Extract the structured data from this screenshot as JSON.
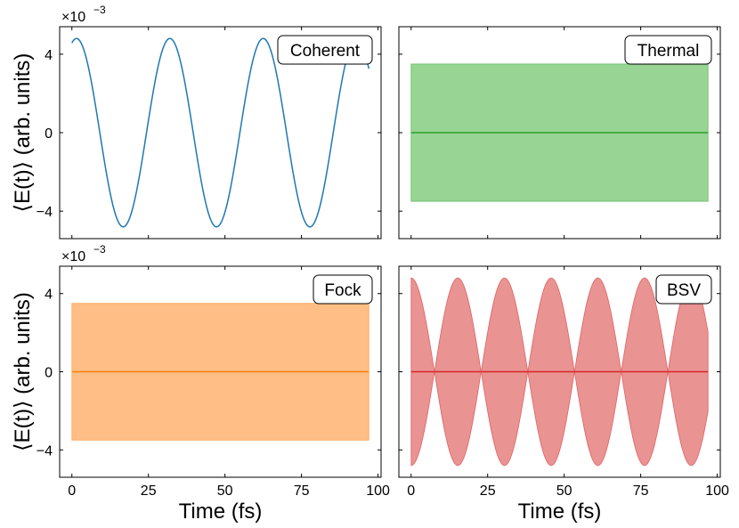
{
  "chart_data": [
    {
      "type": "line",
      "label": "Coherent",
      "color": "#1f77b4",
      "fill_color": null,
      "amplitude": 0.0048,
      "period_fs": 30.5,
      "phase_offset_fs": 1.5,
      "x_range": [
        0,
        97
      ],
      "xlim": [
        -4,
        101
      ],
      "ylim": [
        -0.0054,
        0.0054
      ],
      "yticks": [
        -0.004,
        0,
        0.004
      ],
      "ytick_labels": [
        "−4",
        "0",
        "4"
      ],
      "xticks": [
        0,
        25,
        50,
        75,
        100
      ],
      "xtick_labels": [
        "",
        "",
        "",
        "",
        ""
      ],
      "sci_multiplier": "×10",
      "sci_exponent": "−3",
      "ylabel": "⟨E(t)⟩ (arb. units)",
      "xlabel": ""
    },
    {
      "type": "area",
      "label": "Thermal",
      "color": "#2ca02c",
      "fill_color": "#98d494",
      "band": [
        -0.0035,
        0.0035
      ],
      "mean_line": 0,
      "x_range": [
        0,
        97
      ],
      "xlim": [
        -4,
        101
      ],
      "ylim": [
        -0.0054,
        0.0054
      ],
      "yticks": [
        -0.004,
        0,
        0.004
      ],
      "ytick_labels": [
        "",
        "",
        ""
      ],
      "xticks": [
        0,
        25,
        50,
        75,
        100
      ],
      "xtick_labels": [
        "",
        "",
        "",
        "",
        ""
      ],
      "xlabel": "",
      "ylabel": ""
    },
    {
      "type": "area",
      "label": "Fock",
      "color": "#ff7f0e",
      "fill_color": "#ffbe85",
      "band": [
        -0.0035,
        0.0035
      ],
      "mean_line": 0,
      "x_range": [
        0,
        97
      ],
      "xlim": [
        -4,
        101
      ],
      "ylim": [
        -0.0054,
        0.0054
      ],
      "yticks": [
        -0.004,
        0,
        0.004
      ],
      "ytick_labels": [
        "−4",
        "0",
        "4"
      ],
      "xticks": [
        0,
        25,
        50,
        75,
        100
      ],
      "xtick_labels": [
        "0",
        "25",
        "50",
        "75",
        "100"
      ],
      "sci_multiplier": "×10",
      "sci_exponent": "−3",
      "ylabel": "⟨E(t)⟩ (arb. units)",
      "xlabel": "Time (fs)"
    },
    {
      "type": "area",
      "label": "BSV",
      "color": "#d62728",
      "fill_color": "#e99393",
      "amplitude": 0.0048,
      "period_fs": 30.5,
      "phase_offset_fs": 0,
      "mean_line": 0,
      "x_range": [
        0,
        97
      ],
      "xlim": [
        -4,
        101
      ],
      "ylim": [
        -0.0054,
        0.0054
      ],
      "yticks": [
        -0.004,
        0,
        0.004
      ],
      "ytick_labels": [
        "",
        "",
        ""
      ],
      "xticks": [
        0,
        25,
        50,
        75,
        100
      ],
      "xtick_labels": [
        "0",
        "25",
        "50",
        "75",
        "100"
      ],
      "xlabel": "Time (fs)",
      "ylabel": ""
    }
  ]
}
